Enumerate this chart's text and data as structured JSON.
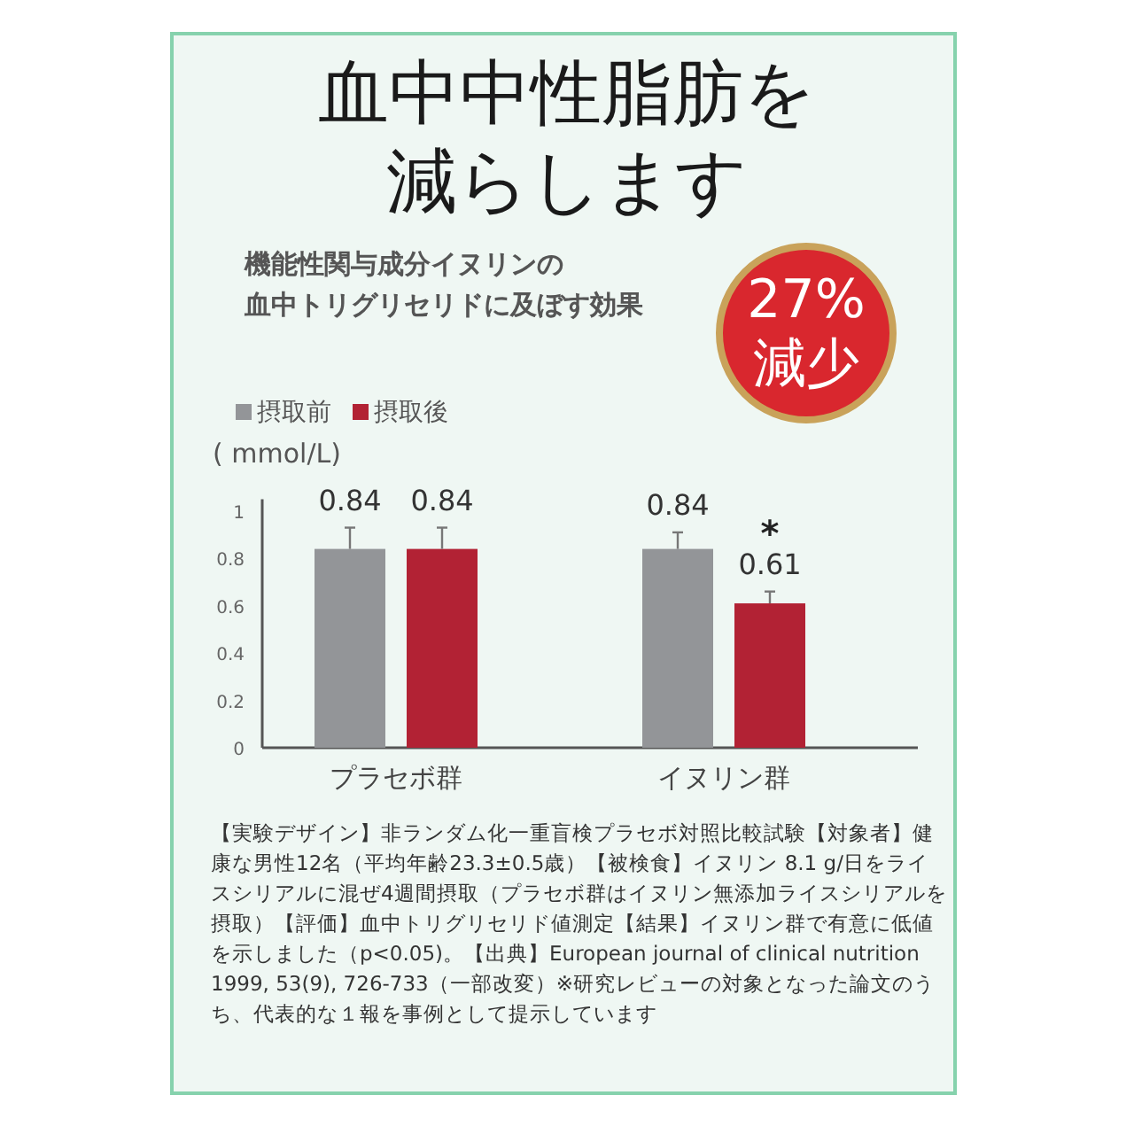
{
  "chart_data": {
    "type": "bar",
    "title": "血中中性脂肪を減らします",
    "subtitle": "機能性関与成分イヌリンの",
    "ylabel": "( mmol/L)",
    "categories": [
      "プラセボ群",
      "イヌリン群"
    ],
    "series": [
      {
        "name": "摂取前",
        "color": "#939598",
        "values": [
          0.84,
          0.84
        ],
        "errors": [
          [
            0.84,
            0.93
          ],
          [
            0.84,
            0.91
          ]
        ]
      },
      {
        "name": "摂取後",
        "color": "#b22234",
        "values": [
          0.84,
          0.61
        ],
        "errors": [
          [
            0.84,
            0.93
          ],
          [
            0.61,
            0.66
          ]
        ]
      }
    ],
    "ylim": [
      0,
      1.05
    ],
    "yticks": [
      0,
      0.2,
      0.4,
      0.6,
      0.8,
      1
    ],
    "data_labels": true,
    "legend": "top left",
    "grid": false,
    "annotations": [
      "*",
      "27%減少",
      "血中トリグリセリドに及ぼす効果",
      "【実験デザイン】非ランダム化一重盲検プラセボ対照比較試験【対象者】健康な男性12名（平均年齢23.3±0.5歳）【被検食】イヌリン 8.1 g/日をライスシリアルに混ぜ4週間摂取（プラセボ群はイヌリン無添加ライスシリアルを摂取）【評価】血中トリグリセリド値測定【結果】イヌリン群で有意に低値を示しました（p<0.05)。【出典】European journal of clinical nutrition 1999, 53(9), 726-733（一部改変）※研究レビューの対象となった論文のうち、代表的な１報を事例として提示しています"
    ]
  }
}
